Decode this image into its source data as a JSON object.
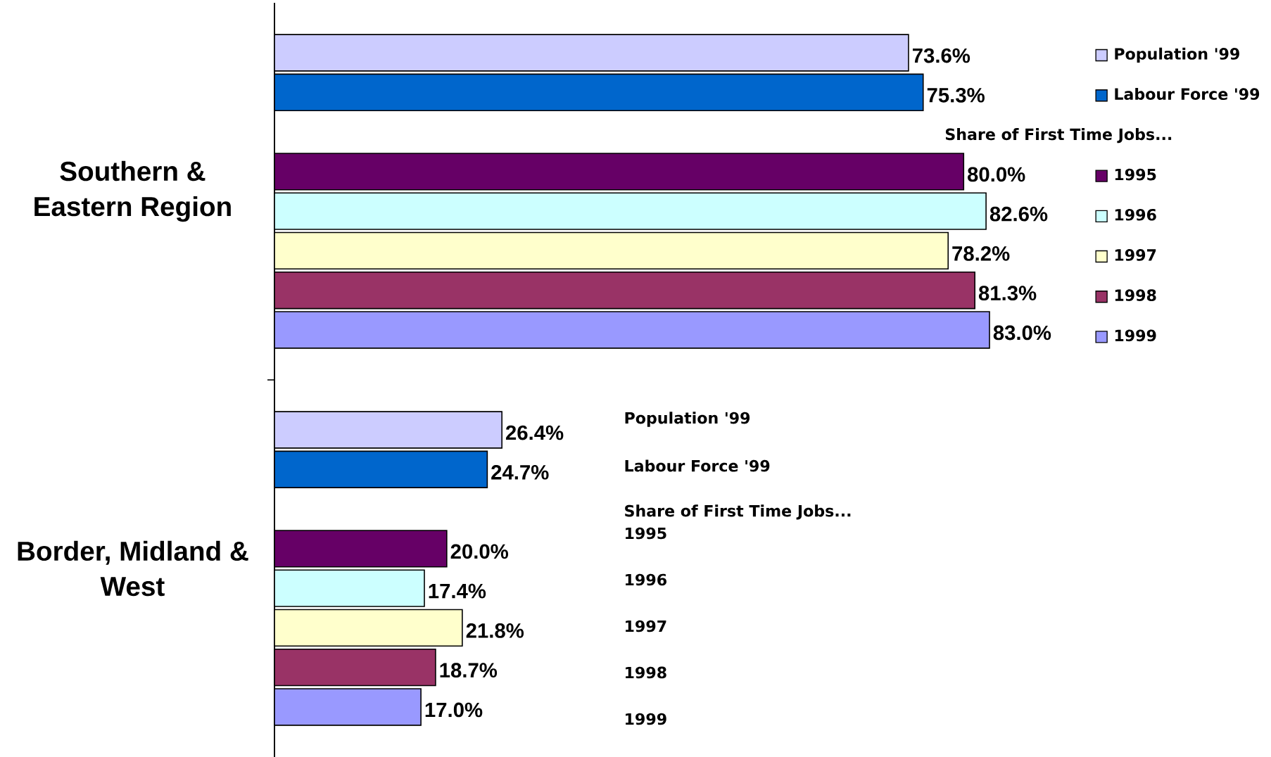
{
  "chart_data": {
    "type": "bar",
    "orientation": "horizontal",
    "categories": [
      "Southern & Eastern Region",
      "Border, Midland & West"
    ],
    "series": [
      {
        "name": "Population '99",
        "color": "#ccccff",
        "values": [
          73.6,
          26.4
        ],
        "value_labels": [
          "73.6%",
          "26.4%"
        ]
      },
      {
        "name": "Labour Force '99",
        "color": "#0066cc",
        "values": [
          75.3,
          24.7
        ],
        "value_labels": [
          "75.3%",
          "24.7%"
        ]
      },
      {
        "name": "Share of First Time Jobs...",
        "values": [
          null,
          null
        ]
      },
      {
        "name": "1995",
        "color": "#660066",
        "values": [
          80.0,
          20.0
        ],
        "value_labels": [
          "80.0%",
          "20.0%"
        ]
      },
      {
        "name": "1996",
        "color": "#ccffff",
        "values": [
          82.6,
          17.4
        ],
        "value_labels": [
          "82.6%",
          "17.4%"
        ]
      },
      {
        "name": "1997",
        "color": "#ffffcc",
        "values": [
          78.2,
          21.8
        ],
        "value_labels": [
          "78.2%",
          "21.8%"
        ]
      },
      {
        "name": "1998",
        "color": "#993366",
        "values": [
          81.3,
          18.7
        ],
        "value_labels": [
          "81.3%",
          "18.7%"
        ]
      },
      {
        "name": "1999",
        "color": "#9999ff",
        "values": [
          83.0,
          17.0
        ],
        "value_labels": [
          "83.0%",
          "17.0%"
        ]
      }
    ],
    "legend": "top right",
    "tick_labels": "y",
    "annotations": [
      "Population '99",
      "Labour Force '99",
      "Share of First Time Jobs...",
      "1995",
      "1996",
      "1997",
      "1998",
      "1999"
    ]
  }
}
